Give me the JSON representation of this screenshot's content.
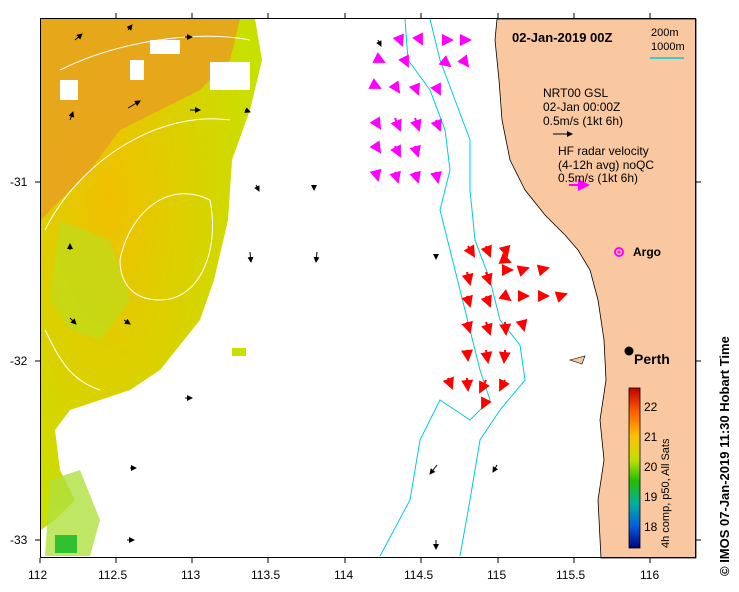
{
  "map": {
    "date_title": "02-Jan-2019 00Z",
    "depth_legend": {
      "a": "200m",
      "b": "1000m"
    },
    "model_legend": {
      "line1": "NRT00 GSL",
      "line2": "02-Jan 00:00Z",
      "line3": "0.5m/s (1kt 6h)"
    },
    "radar_legend": {
      "line1": "HF radar velocity",
      "line2": "(4-12h avg) noQC",
      "line3": "0.5m/s (1kt 6h)"
    },
    "argo_label": "Argo",
    "city_label": "Perth",
    "vertical_credit": "© IMOS 07-Jan-2019 11:30 Hobart Time",
    "colorbar": {
      "label": "4h comp, p50, All Sats",
      "ticks": [
        "22",
        "21",
        "20",
        "19",
        "18"
      ]
    },
    "x_ticks": [
      "112",
      "112.5",
      "113",
      "113.5",
      "114",
      "114.5",
      "115",
      "115.5",
      "116"
    ],
    "y_ticks": [
      "-31",
      "-32",
      "-33"
    ],
    "colors": {
      "land": "#f9c8a0",
      "isobath": "#00ccdd",
      "radar_magenta": "#ff00ff",
      "radar_red": "#ff0000",
      "model_arrow": "#000000"
    }
  }
}
